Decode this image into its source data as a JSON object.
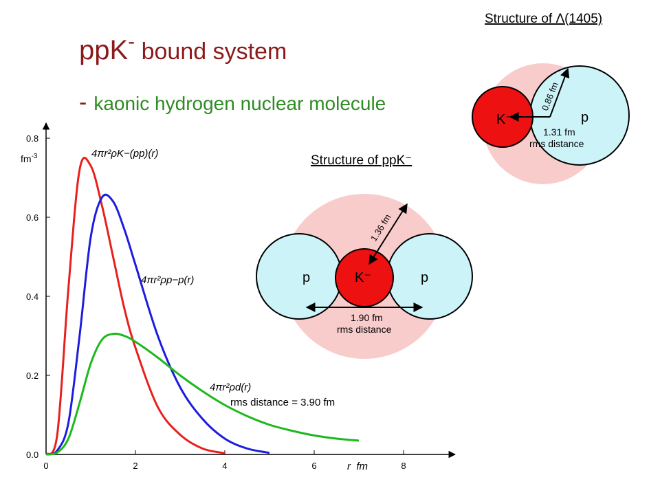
{
  "slide": {
    "title_main": "ppK",
    "title_sup": "-",
    "title_rest": " bound system",
    "subtitle_dash": "-",
    "subtitle": "kaonic hydrogen nuclear molecule"
  },
  "lambda_diagram": {
    "title": "Structure of Λ(1405)",
    "kaon": "K⁻",
    "proton": "p",
    "radius": "0.86 fm",
    "distance": "1.31 fm",
    "distance_note": "rms distance"
  },
  "ppk_diagram": {
    "title": "Structure of ppK⁻",
    "proton_left": "p",
    "kaon": "K⁻",
    "proton_right": "p",
    "radius": "1.36 fm",
    "distance": "1.90 fm",
    "distance_note": "rms distance"
  },
  "chart_data": {
    "type": "line",
    "y_label": "fm",
    "y_label_exponent": "-3",
    "x_label": "r  fm",
    "annotation": "rms distance = 3.90 fm",
    "x": [
      0,
      0.25,
      0.5,
      0.75,
      1,
      1.25,
      1.5,
      1.75,
      2,
      2.5,
      3,
      3.5,
      4,
      4.5,
      5,
      5.5,
      6,
      6.5,
      7
    ],
    "series": [
      {
        "name": "4πr²ρK−(pp)(r)",
        "color": "#e8201c",
        "values": [
          0,
          0.05,
          0.42,
          0.72,
          0.73,
          0.63,
          0.5,
          0.37,
          0.27,
          0.12,
          0.05,
          0.015,
          0.003,
          null,
          null,
          null,
          null,
          null,
          null
        ]
      },
      {
        "name": "4πr²ρp−p(r)",
        "color": "#1c1ce0",
        "values": [
          0,
          0.01,
          0.08,
          0.3,
          0.55,
          0.65,
          0.64,
          0.57,
          0.48,
          0.3,
          0.17,
          0.09,
          0.04,
          0.015,
          0.004,
          null,
          null,
          null,
          null
        ]
      },
      {
        "name": "4πr²ρd(r)",
        "color": "#1cb81c",
        "values": [
          0,
          0.005,
          0.04,
          0.13,
          0.23,
          0.29,
          0.305,
          0.3,
          0.285,
          0.245,
          0.2,
          0.16,
          0.125,
          0.097,
          0.075,
          0.06,
          0.048,
          0.04,
          0.035
        ]
      }
    ],
    "xlim": [
      0,
      9
    ],
    "ylim": [
      0,
      0.8
    ],
    "xticks": [
      0,
      2,
      4,
      6,
      8
    ],
    "yticks": [
      {
        "value": 0,
        "label": "0.0"
      },
      0.2,
      0.4,
      0.6,
      0.8
    ],
    "grid": false
  }
}
